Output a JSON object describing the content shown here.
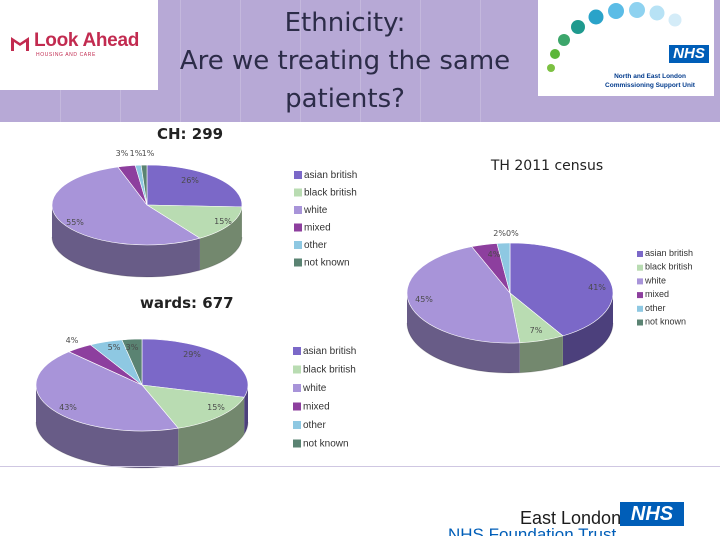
{
  "slide": {
    "title_line1": "Ethnicity:",
    "title_line2": "Are we treating the same",
    "title_line3": "patients?"
  },
  "logos": {
    "look_ahead": "Look Ahead",
    "look_ahead_sub": "HOUSING AND CARE",
    "nhs": "NHS",
    "nelcsu_line1": "North and East London",
    "nelcsu_line2": "Commissioning Support Unit",
    "footer_org": "East London",
    "footer_nhs": "NHS",
    "footer_trust": "NHS Foundation Trust"
  },
  "chart_data": [
    {
      "type": "pie",
      "title": "CH: 299",
      "categories": [
        "asian british",
        "black british",
        "white",
        "mixed",
        "other",
        "not known"
      ],
      "values": [
        26,
        15,
        55,
        3,
        1,
        1
      ],
      "labels": [
        "26%",
        "15%",
        "55%",
        "3%",
        "1%",
        "1%"
      ],
      "colors": [
        "#7b68c8",
        "#b9dcb2",
        "#a894d9",
        "#8d3f9e",
        "#8ec8e2",
        "#5a8372"
      ],
      "legend": "right"
    },
    {
      "type": "pie",
      "title": "wards: 677",
      "categories": [
        "asian british",
        "black british",
        "white",
        "mixed",
        "other",
        "not known"
      ],
      "values": [
        29,
        15,
        43,
        4,
        5,
        3
      ],
      "labels": [
        "29%",
        "15%",
        "43%",
        "4%",
        "5%",
        "3%"
      ],
      "colors": [
        "#7b68c8",
        "#b9dcb2",
        "#a894d9",
        "#8d3f9e",
        "#8ec8e2",
        "#5a8372"
      ],
      "legend": "right"
    },
    {
      "type": "pie",
      "title": "TH 2011 census",
      "categories": [
        "asian british",
        "black british",
        "white",
        "mixed",
        "other",
        "not known"
      ],
      "values": [
        41,
        7,
        45,
        4,
        2,
        0
      ],
      "labels": [
        "41%",
        "7%",
        "45%",
        "4%",
        "2%",
        "0%"
      ],
      "top_label": "2%0%",
      "colors": [
        "#7b68c8",
        "#b9dcb2",
        "#a894d9",
        "#8d3f9e",
        "#8ec8e2",
        "#5a8372"
      ],
      "legend": "right"
    }
  ]
}
